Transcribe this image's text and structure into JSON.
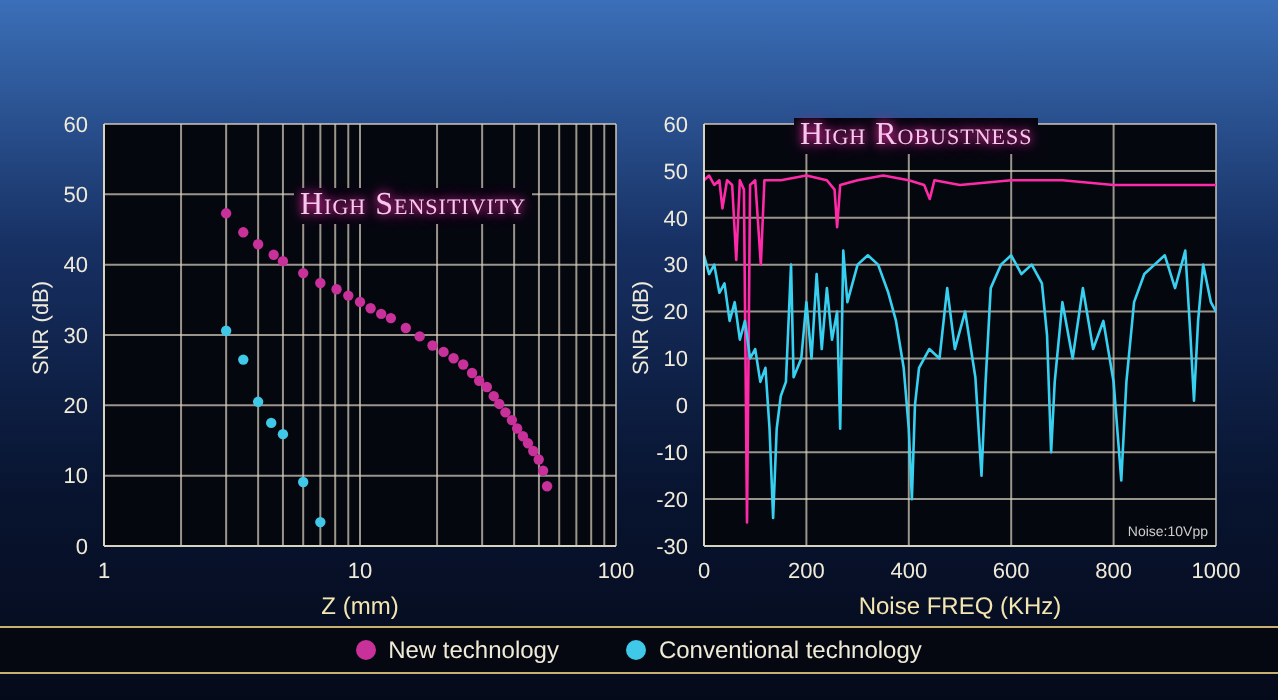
{
  "chart_data": [
    {
      "type": "scatter",
      "xlabel": "Z (mm)",
      "ylabel": "SNR (dB)",
      "log": "x",
      "xlim": [
        1,
        100
      ],
      "ylim": [
        0,
        60
      ],
      "xticks": [
        1,
        {
          "value": 2,
          "label": null
        },
        {
          "value": 3,
          "label": null
        },
        {
          "value": 4,
          "label": null
        },
        {
          "value": 5,
          "label": null
        },
        {
          "value": 6,
          "label": null
        },
        {
          "value": 7,
          "label": null
        },
        {
          "value": 8,
          "label": null
        },
        {
          "value": 9,
          "label": null
        },
        10,
        {
          "value": 20,
          "label": null
        },
        {
          "value": 30,
          "label": null
        },
        {
          "value": 40,
          "label": null
        },
        {
          "value": 50,
          "label": null
        },
        {
          "value": 60,
          "label": null
        },
        {
          "value": 70,
          "label": null
        },
        {
          "value": 80,
          "label": null
        },
        {
          "value": 90,
          "label": null
        },
        100
      ],
      "yticks": [
        0,
        10,
        20,
        30,
        40,
        50,
        60
      ],
      "grid": true,
      "marker": "circle",
      "legend": "bottom",
      "annotations": [
        "High Sensitivity"
      ],
      "series": [
        {
          "name": "New technology",
          "color": "#c8309a",
          "x": [
            3.0,
            3.5,
            4.0,
            4.6,
            5.0,
            6.0,
            7.0,
            8.1,
            9.0,
            10,
            11,
            12.1,
            13.2,
            15.1,
            17.1,
            19.2,
            21.2,
            23.2,
            25.3,
            27.4,
            29.2,
            31.3,
            33.3,
            35,
            37,
            39.2,
            41.1,
            43.3,
            45.3,
            47.5,
            49.9,
            51.9,
            53.8
          ],
          "values": [
            47.3,
            44.6,
            42.9,
            41.4,
            40.5,
            38.8,
            37.4,
            36.5,
            35.6,
            34.7,
            33.8,
            33.0,
            32.4,
            31.0,
            29.8,
            28.5,
            27.6,
            26.7,
            25.8,
            24.6,
            23.5,
            22.6,
            21.3,
            20.2,
            19.0,
            17.9,
            16.7,
            15.6,
            14.6,
            13.5,
            12.3,
            10.7,
            8.5
          ]
        },
        {
          "name": "Conventional technology",
          "color": "#3fc8e8",
          "x": [
            3.0,
            3.5,
            4.0,
            4.5,
            5.0,
            6.0,
            7.0
          ],
          "values": [
            30.6,
            26.5,
            20.5,
            17.5,
            15.9,
            9.1,
            3.4
          ]
        }
      ]
    },
    {
      "type": "line",
      "xlabel": "Noise FREQ (KHz)",
      "ylabel": "SNR (dB)",
      "xlim": [
        0,
        1000
      ],
      "ylim": [
        -30,
        60
      ],
      "xticks": [
        0,
        200,
        400,
        600,
        800,
        1000
      ],
      "yticks": [
        -30,
        -20,
        -10,
        0,
        10,
        20,
        30,
        40,
        50,
        60
      ],
      "grid": true,
      "annotations": [
        "High Robustness",
        "Noise:10Vpp"
      ],
      "series": [
        {
          "color": "#ff2aa8",
          "x": [
            0,
            10,
            20,
            30,
            36,
            45,
            55,
            63,
            70,
            78,
            84,
            90,
            100,
            111,
            118,
            150,
            200,
            240,
            255,
            260,
            266,
            300,
            350,
            400,
            430,
            441,
            450,
            500,
            600,
            700,
            800,
            900,
            1000
          ],
          "values": [
            48,
            49,
            47,
            48,
            42,
            48,
            47,
            31,
            48,
            46,
            -25,
            47,
            48,
            30,
            48,
            48,
            49,
            48,
            46,
            38,
            47,
            48,
            49,
            48,
            47,
            44,
            48,
            47,
            48,
            48,
            47,
            47,
            47
          ]
        },
        {
          "color": "#38d0f0",
          "x": [
            0,
            10,
            20,
            30,
            40,
            50,
            60,
            70,
            80,
            90,
            100,
            110,
            120,
            128,
            135,
            142,
            150,
            160,
            170,
            175,
            190,
            200,
            210,
            220,
            230,
            240,
            250,
            260,
            266,
            272,
            280,
            300,
            320,
            340,
            360,
            375,
            390,
            400,
            406,
            412,
            420,
            440,
            460,
            475,
            490,
            510,
            530,
            542,
            550,
            560,
            580,
            600,
            620,
            640,
            660,
            670,
            678,
            685,
            700,
            720,
            740,
            760,
            780,
            800,
            815,
            825,
            840,
            860,
            880,
            900,
            920,
            940,
            950,
            957,
            965,
            975,
            990,
            1000
          ],
          "values": [
            32,
            28,
            30,
            24,
            26,
            18,
            22,
            14,
            18,
            10,
            12,
            5,
            8,
            -5,
            -24,
            -5,
            2,
            5,
            30,
            6,
            10,
            22,
            10,
            28,
            12,
            25,
            14,
            20,
            -5,
            33,
            22,
            30,
            32,
            30,
            24,
            18,
            8,
            -5,
            -20,
            0,
            8,
            12,
            10,
            25,
            12,
            20,
            6,
            -15,
            5,
            25,
            30,
            32,
            28,
            30,
            26,
            15,
            -10,
            5,
            22,
            10,
            25,
            12,
            18,
            5,
            -16,
            5,
            22,
            28,
            30,
            32,
            25,
            33,
            15,
            1,
            18,
            30,
            22,
            20
          ]
        }
      ]
    }
  ]
}
